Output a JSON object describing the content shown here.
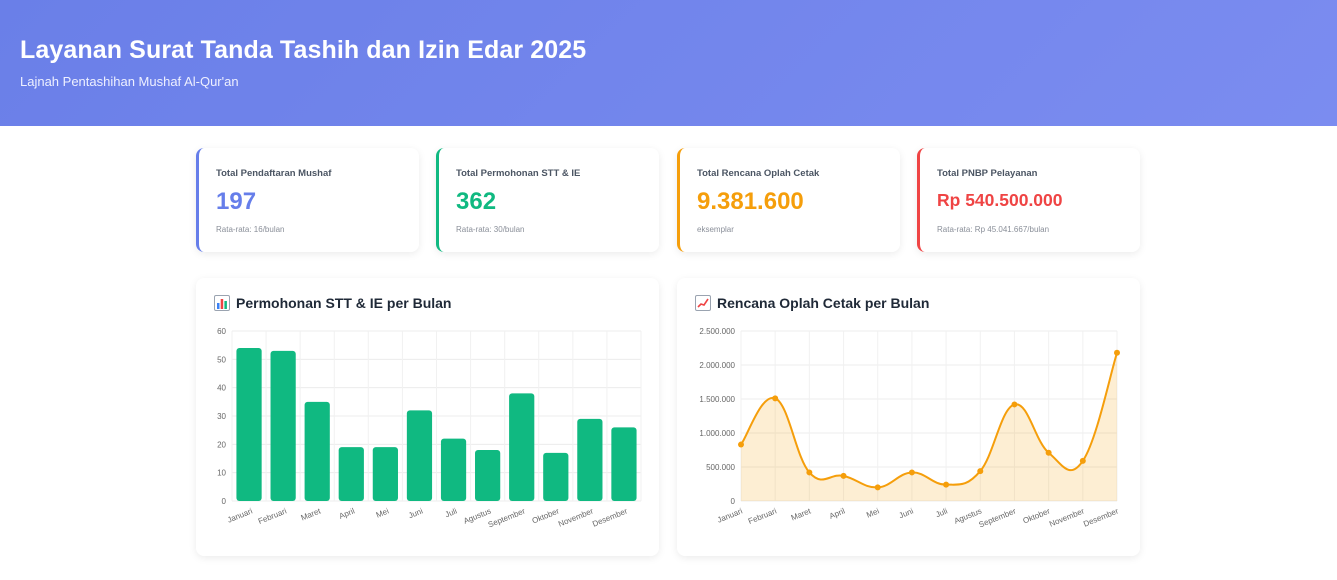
{
  "header": {
    "title": "Layanan Surat Tanda Tashih dan Izin Edar 2025",
    "subtitle": "Lajnah Pentashihan Mushaf Al-Qur'an"
  },
  "cards": [
    {
      "label": "Total Pendaftaran Mushaf",
      "value": "197",
      "sub": "Rata-rata: 16/bulan",
      "color": "#667eea"
    },
    {
      "label": "Total Permohonan STT & IE",
      "value": "362",
      "sub": "Rata-rata: 30/bulan",
      "color": "#10b981"
    },
    {
      "label": "Total Rencana Oplah Cetak",
      "value": "9.381.600",
      "sub": "eksemplar",
      "color": "#f59e0b"
    },
    {
      "label": "Total PNBP Pelayanan",
      "value": "Rp 540.500.000",
      "sub": "Rata-rata: Rp 45.041.667/bulan",
      "color": "#ef4444"
    }
  ],
  "panels": {
    "bar_title": "Permohonan STT & IE per Bulan",
    "bar_icon": "bar-chart-icon",
    "line_title": "Rencana Oplah Cetak per Bulan",
    "line_icon": "trend-up-icon"
  },
  "chart_data": [
    {
      "type": "bar",
      "title": "Permohonan STT & IE per Bulan",
      "categories": [
        "Januari",
        "Februari",
        "Maret",
        "April",
        "Mei",
        "Juni",
        "Juli",
        "Agustus",
        "September",
        "Oktober",
        "November",
        "Desember"
      ],
      "values": [
        54,
        53,
        35,
        19,
        19,
        32,
        22,
        18,
        38,
        17,
        29,
        26
      ],
      "ylim": [
        0,
        60
      ],
      "yticks": [
        "0",
        "10",
        "20",
        "30",
        "40",
        "50",
        "60"
      ],
      "grid": true,
      "color": "#10b981"
    },
    {
      "type": "area",
      "title": "Rencana Oplah Cetak per Bulan",
      "categories": [
        "Januari",
        "Februari",
        "Maret",
        "April",
        "Mei",
        "Juni",
        "Juli",
        "Agustus",
        "September",
        "Oktober",
        "November",
        "Desember"
      ],
      "values": [
        830000,
        1510000,
        420000,
        370000,
        200000,
        420000,
        240000,
        440000,
        1420000,
        710000,
        590000,
        2180000
      ],
      "ylim": [
        0,
        2500000
      ],
      "yticks": [
        "0",
        "500.000",
        "1.000.000",
        "1.500.000",
        "2.000.000",
        "2.500.000"
      ],
      "grid": true,
      "color": "#f59e0b"
    }
  ]
}
